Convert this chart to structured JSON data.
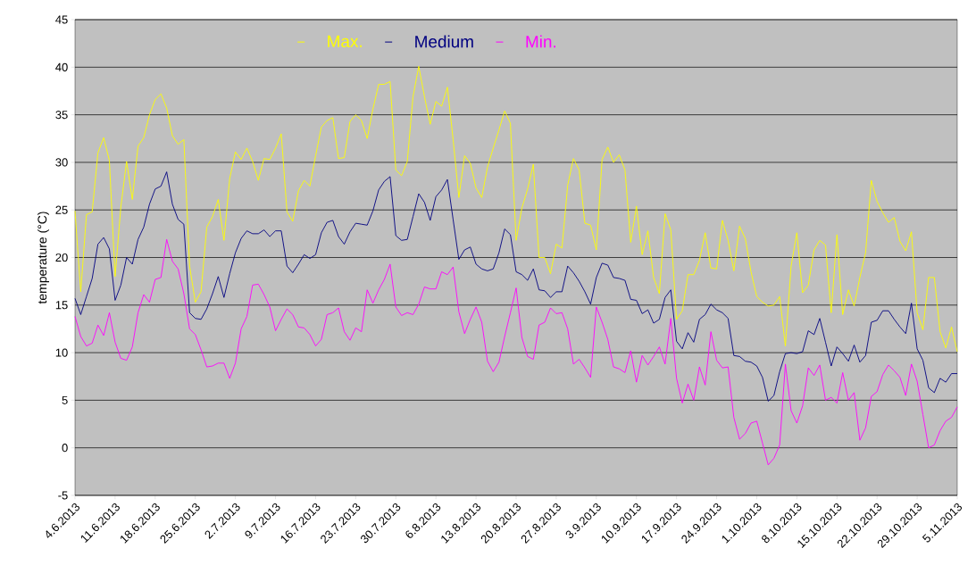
{
  "chart_data": {
    "type": "line",
    "ylabel": "temperature (°C)",
    "x": [
      "2013-06-04",
      "2013-06-05",
      "2013-06-06",
      "2013-06-07",
      "2013-06-08",
      "2013-06-09",
      "2013-06-10",
      "2013-06-11",
      "2013-06-12",
      "2013-06-13",
      "2013-06-14",
      "2013-06-15",
      "2013-06-16",
      "2013-06-17",
      "2013-06-18",
      "2013-06-19",
      "2013-06-20",
      "2013-06-21",
      "2013-06-22",
      "2013-06-23",
      "2013-06-24",
      "2013-06-25",
      "2013-06-26",
      "2013-06-27",
      "2013-06-28",
      "2013-06-29",
      "2013-06-30",
      "2013-07-01",
      "2013-07-02",
      "2013-07-03",
      "2013-07-04",
      "2013-07-05",
      "2013-07-06",
      "2013-07-07",
      "2013-07-08",
      "2013-07-09",
      "2013-07-10",
      "2013-07-11",
      "2013-07-12",
      "2013-07-13",
      "2013-07-14",
      "2013-07-15",
      "2013-07-16",
      "2013-07-17",
      "2013-07-18",
      "2013-07-19",
      "2013-07-20",
      "2013-07-21",
      "2013-07-22",
      "2013-07-23",
      "2013-07-24",
      "2013-07-25",
      "2013-07-26",
      "2013-07-27",
      "2013-07-28",
      "2013-07-29",
      "2013-07-30",
      "2013-07-31",
      "2013-08-01",
      "2013-08-02",
      "2013-08-03",
      "2013-08-04",
      "2013-08-05",
      "2013-08-06",
      "2013-08-07",
      "2013-08-08",
      "2013-08-09",
      "2013-08-10",
      "2013-08-11",
      "2013-08-12",
      "2013-08-13",
      "2013-08-14",
      "2013-08-15",
      "2013-08-16",
      "2013-08-17",
      "2013-08-18",
      "2013-08-19",
      "2013-08-20",
      "2013-08-21",
      "2013-08-22",
      "2013-08-23",
      "2013-08-24",
      "2013-08-25",
      "2013-08-26",
      "2013-08-27",
      "2013-08-28",
      "2013-08-29",
      "2013-08-30",
      "2013-08-31",
      "2013-09-01",
      "2013-09-02",
      "2013-09-03",
      "2013-09-04",
      "2013-09-05",
      "2013-09-06",
      "2013-09-07",
      "2013-09-08",
      "2013-09-09",
      "2013-09-10",
      "2013-09-11",
      "2013-09-12",
      "2013-09-13",
      "2013-09-14",
      "2013-09-15",
      "2013-09-16",
      "2013-09-17",
      "2013-09-18",
      "2013-09-19",
      "2013-09-20",
      "2013-09-21",
      "2013-09-22",
      "2013-09-23",
      "2013-09-24",
      "2013-09-25",
      "2013-09-26",
      "2013-09-27",
      "2013-09-28",
      "2013-09-29",
      "2013-09-30",
      "2013-10-01",
      "2013-10-02",
      "2013-10-03",
      "2013-10-04",
      "2013-10-05",
      "2013-10-06",
      "2013-10-07",
      "2013-10-08",
      "2013-10-09",
      "2013-10-10",
      "2013-10-11",
      "2013-10-12",
      "2013-10-13",
      "2013-10-14",
      "2013-10-15",
      "2013-10-16",
      "2013-10-17",
      "2013-10-18",
      "2013-10-19",
      "2013-10-20",
      "2013-10-21",
      "2013-10-22",
      "2013-10-23",
      "2013-10-24",
      "2013-10-25",
      "2013-10-26",
      "2013-10-27",
      "2013-10-28",
      "2013-10-29",
      "2013-10-30",
      "2013-10-31",
      "2013-11-01",
      "2013-11-02",
      "2013-11-03",
      "2013-11-04",
      "2013-11-05"
    ],
    "series": [
      {
        "name": "Max.",
        "color": "#ffff00",
        "values": [
          24.9,
          16.4,
          24.5,
          24.8,
          31.0,
          32.6,
          30.2,
          18.0,
          25.3,
          30.1,
          26.1,
          31.7,
          32.6,
          35.0,
          36.6,
          37.2,
          35.7,
          32.8,
          31.9,
          32.4,
          19.1,
          15.3,
          16.4,
          23.2,
          24.3,
          26.1,
          21.8,
          28.3,
          31.1,
          30.3,
          31.5,
          30.1,
          28.1,
          30.4,
          30.3,
          31.5,
          33.0,
          24.8,
          23.8,
          27.0,
          28.1,
          27.5,
          30.7,
          33.7,
          34.4,
          34.7,
          30.4,
          30.5,
          34.3,
          35.0,
          34.4,
          32.5,
          35.6,
          38.2,
          38.2,
          38.5,
          29.2,
          28.6,
          30.1,
          36.9,
          40.1,
          36.9,
          34.0,
          36.4,
          35.9,
          37.9,
          32.4,
          26.3,
          30.7,
          29.9,
          27.3,
          26.3,
          29.5,
          31.5,
          33.4,
          35.4,
          34.1,
          21.8,
          25.2,
          27.2,
          29.8,
          20.0,
          20.0,
          18.3,
          21.4,
          21.0,
          27.6,
          30.4,
          29.2,
          23.6,
          23.4,
          20.8,
          30.3,
          31.6,
          30.0,
          30.8,
          29.2,
          21.6,
          25.4,
          20.3,
          22.8,
          17.9,
          16.2,
          24.6,
          22.9,
          13.5,
          14.4,
          18.2,
          18.2,
          19.7,
          22.6,
          18.9,
          18.8,
          23.9,
          21.8,
          18.6,
          23.3,
          22.0,
          18.5,
          15.9,
          15.3,
          14.9,
          15.0,
          15.9,
          10.7,
          19.1,
          22.6,
          16.3,
          17.1,
          20.8,
          21.8,
          21.3,
          14.2,
          22.4,
          14.0,
          16.6,
          14.9,
          17.9,
          20.5,
          28.1,
          25.9,
          24.7,
          23.7,
          24.2,
          21.7,
          20.7,
          22.7,
          14.2,
          12.4,
          17.9,
          17.9,
          12.2,
          10.5,
          12.7,
          10.1
        ]
      },
      {
        "name": "Medium",
        "color": "#000080",
        "values": [
          15.7,
          14.0,
          15.9,
          17.8,
          21.4,
          22.1,
          20.9,
          15.5,
          17.1,
          20.0,
          19.3,
          21.9,
          23.2,
          25.6,
          27.2,
          27.5,
          29.0,
          25.6,
          24.0,
          23.5,
          14.2,
          13.6,
          13.5,
          14.6,
          16.2,
          18.0,
          15.8,
          18.3,
          20.5,
          22.0,
          22.8,
          22.5,
          22.5,
          22.9,
          22.2,
          22.8,
          22.8,
          19.1,
          18.4,
          19.3,
          20.3,
          19.9,
          20.3,
          22.6,
          23.7,
          23.9,
          22.2,
          21.4,
          22.7,
          23.6,
          23.5,
          23.4,
          24.9,
          27.1,
          28.0,
          28.5,
          22.3,
          21.8,
          21.9,
          24.3,
          26.7,
          25.8,
          23.9,
          26.4,
          27.1,
          28.2,
          24.0,
          19.8,
          20.8,
          21.1,
          19.3,
          18.8,
          18.6,
          18.8,
          20.5,
          23.0,
          22.4,
          18.5,
          18.2,
          17.6,
          18.8,
          16.6,
          16.5,
          15.8,
          16.4,
          16.4,
          19.1,
          18.4,
          17.5,
          16.4,
          15.1,
          17.9,
          19.4,
          19.2,
          17.9,
          17.8,
          17.6,
          15.6,
          15.5,
          14.1,
          14.5,
          13.1,
          13.5,
          15.8,
          16.6,
          11.2,
          10.4,
          12.1,
          11.1,
          13.5,
          14.0,
          15.1,
          14.5,
          14.2,
          13.6,
          9.7,
          9.6,
          9.1,
          9.0,
          8.6,
          7.4,
          4.9,
          5.5,
          8.0,
          9.9,
          10.0,
          9.9,
          10.1,
          12.3,
          11.9,
          13.6,
          11.1,
          8.6,
          10.6,
          9.9,
          9.1,
          10.8,
          9.0,
          9.7,
          13.2,
          13.4,
          14.4,
          14.4,
          13.5,
          12.7,
          12.0,
          15.2,
          10.4,
          9.2,
          6.3,
          5.8,
          7.3,
          6.9,
          7.8,
          7.8
        ]
      },
      {
        "name": "Min.",
        "color": "#ff00ff",
        "values": [
          13.8,
          11.7,
          10.7,
          11.0,
          12.9,
          11.8,
          14.2,
          11.1,
          9.4,
          9.2,
          10.6,
          14.2,
          16.1,
          15.3,
          17.7,
          17.9,
          21.9,
          19.6,
          18.8,
          16.2,
          12.5,
          11.9,
          10.3,
          8.5,
          8.6,
          8.9,
          8.9,
          7.3,
          8.9,
          12.5,
          13.8,
          17.1,
          17.2,
          16.1,
          14.8,
          12.3,
          13.5,
          14.6,
          14.0,
          12.7,
          12.6,
          11.9,
          10.7,
          11.4,
          14.0,
          14.2,
          14.7,
          12.2,
          11.3,
          12.6,
          12.2,
          16.6,
          15.2,
          16.6,
          17.7,
          19.3,
          14.8,
          13.9,
          14.2,
          14.0,
          15.1,
          16.9,
          16.7,
          16.7,
          18.5,
          18.2,
          19.0,
          14.3,
          12.0,
          13.5,
          14.8,
          13.2,
          9.1,
          8.0,
          9.0,
          11.7,
          14.2,
          16.8,
          11.6,
          9.6,
          9.3,
          12.9,
          13.2,
          14.7,
          14.1,
          14.2,
          12.5,
          8.8,
          9.3,
          8.4,
          7.4,
          14.8,
          13.2,
          11.4,
          8.5,
          8.3,
          7.9,
          10.2,
          6.9,
          9.7,
          8.7,
          9.6,
          10.6,
          8.8,
          13.6,
          7.3,
          4.7,
          6.7,
          5.0,
          8.5,
          6.6,
          12.2,
          9.2,
          8.4,
          8.5,
          3.2,
          0.9,
          1.5,
          2.6,
          2.8,
          0.5,
          -1.8,
          -1.1,
          0.3,
          8.8,
          3.9,
          2.6,
          4.4,
          8.4,
          7.6,
          8.7,
          5.0,
          5.3,
          4.7,
          7.9,
          5.0,
          5.8,
          0.8,
          2.1,
          5.4,
          5.9,
          7.7,
          8.7,
          8.1,
          7.4,
          5.5,
          8.8,
          7.0,
          3.5,
          0.0,
          0.3,
          1.8,
          2.8,
          3.2,
          4.3
        ]
      }
    ],
    "xlim": [
      "2013-06-04",
      "2013-11-05"
    ],
    "xticks": [
      {
        "value": "2013-06-04",
        "label": "4.6.2013"
      },
      {
        "value": "2013-06-11",
        "label": "11.6.2013"
      },
      {
        "value": "2013-06-18",
        "label": "18.6.2013"
      },
      {
        "value": "2013-06-25",
        "label": "25.6.2013"
      },
      {
        "value": "2013-07-02",
        "label": "2.7.2013"
      },
      {
        "value": "2013-07-09",
        "label": "9.7.2013"
      },
      {
        "value": "2013-07-16",
        "label": "16.7.2013"
      },
      {
        "value": "2013-07-23",
        "label": "23.7.2013"
      },
      {
        "value": "2013-07-30",
        "label": "30.7.2013"
      },
      {
        "value": "2013-08-06",
        "label": "6.8.2013"
      },
      {
        "value": "2013-08-13",
        "label": "13.8.2013"
      },
      {
        "value": "2013-08-20",
        "label": "20.8.2013"
      },
      {
        "value": "2013-08-27",
        "label": "27.8.2013"
      },
      {
        "value": "2013-09-03",
        "label": "3.9.2013"
      },
      {
        "value": "2013-09-10",
        "label": "10.9.2013"
      },
      {
        "value": "2013-09-17",
        "label": "17.9.2013"
      },
      {
        "value": "2013-09-24",
        "label": "24.9.2013"
      },
      {
        "value": "2013-10-01",
        "label": "1.10.2013"
      },
      {
        "value": "2013-10-08",
        "label": "8.10.2013"
      },
      {
        "value": "2013-10-15",
        "label": "15.10.2013"
      },
      {
        "value": "2013-10-22",
        "label": "22.10.2013"
      },
      {
        "value": "2013-10-29",
        "label": "29.10.2013"
      },
      {
        "value": "2013-11-05",
        "label": "5.11.2013"
      }
    ],
    "ylim": [
      -5,
      45
    ],
    "yticks": [
      -5,
      0,
      5,
      10,
      15,
      20,
      25,
      30,
      35,
      40,
      45
    ],
    "grid": "y",
    "legend": "top"
  }
}
